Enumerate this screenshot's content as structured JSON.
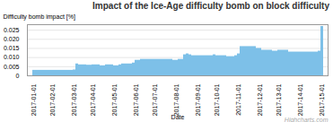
{
  "chart_data": {
    "type": "bar",
    "title": "Impact of the Ice-Age difficulty bomb on block difficulty",
    "xlabel": "Date",
    "ylabel": "Difficulty bomb impact [%]",
    "annotations": [
      "Highcharts.com"
    ],
    "color": "#7DC0E8",
    "grid": true,
    "ylim": [
      0,
      0.028
    ],
    "yticks": [
      0,
      0.005,
      {
        "value": 0.01,
        "label": "0.010"
      },
      0.015,
      {
        "value": 0.02,
        "label": "0.020"
      },
      0.025
    ],
    "categories": [
      "2017-01-01",
      null,
      null,
      null,
      null,
      null,
      null,
      "2017-02-01",
      null,
      null,
      null,
      null,
      null,
      null,
      null,
      "2017-03-01",
      null,
      null,
      null,
      null,
      null,
      null,
      "2017-04-01",
      null,
      null,
      null,
      null,
      null,
      null,
      null,
      "2017-05-01",
      null,
      null,
      null,
      null,
      null,
      null,
      null,
      "2017-06-01",
      null,
      null,
      null,
      null,
      null,
      null,
      "2017-07-01",
      null,
      null,
      null,
      null,
      null,
      null,
      null,
      "2017-08-01",
      null,
      null,
      null,
      null,
      null,
      null,
      null,
      "2017-09-01",
      null,
      null,
      null,
      null,
      null,
      null,
      "2017-10-01",
      null,
      null,
      null,
      null,
      null,
      null,
      null,
      "2017-11-01",
      null,
      null,
      null,
      null,
      null,
      null,
      null,
      "2017-12-01",
      null,
      null,
      null,
      null,
      null,
      null,
      "2017-13-01",
      null,
      null,
      null,
      null,
      null,
      null,
      null,
      "2017-14-01",
      null,
      null,
      null,
      null,
      null,
      null,
      null,
      "2017-15-01"
    ],
    "values": [
      0.003,
      0.003,
      0.003,
      0.003,
      0.003,
      0.003,
      0.003,
      0.003,
      0.003,
      0.003,
      0.003,
      0.003,
      0.003,
      0.003,
      0.003,
      0.0032,
      0.0065,
      0.006,
      0.006,
      0.006,
      0.0058,
      0.0058,
      0.006,
      0.006,
      0.006,
      0.0055,
      0.0055,
      0.006,
      0.006,
      0.006,
      0.0055,
      0.0055,
      0.006,
      0.0065,
      0.0065,
      0.0065,
      0.0065,
      0.007,
      0.0085,
      0.0085,
      0.009,
      0.009,
      0.009,
      0.009,
      0.009,
      0.009,
      0.009,
      0.009,
      0.009,
      0.009,
      0.009,
      0.009,
      0.0085,
      0.0085,
      0.009,
      0.009,
      0.0115,
      0.012,
      0.0115,
      0.011,
      0.011,
      0.011,
      0.011,
      0.011,
      0.011,
      0.011,
      0.011,
      0.0115,
      0.011,
      0.011,
      0.011,
      0.011,
      0.0105,
      0.0105,
      0.0105,
      0.011,
      0.012,
      0.016,
      0.016,
      0.016,
      0.016,
      0.016,
      0.016,
      0.015,
      0.015,
      0.014,
      0.014,
      0.014,
      0.014,
      0.0135,
      0.0135,
      0.014,
      0.014,
      0.014,
      0.014,
      0.013,
      0.013,
      0.013,
      0.013,
      0.013,
      0.013,
      0.013,
      0.013,
      0.013,
      0.013,
      0.013,
      0.0135,
      0.027
    ]
  }
}
